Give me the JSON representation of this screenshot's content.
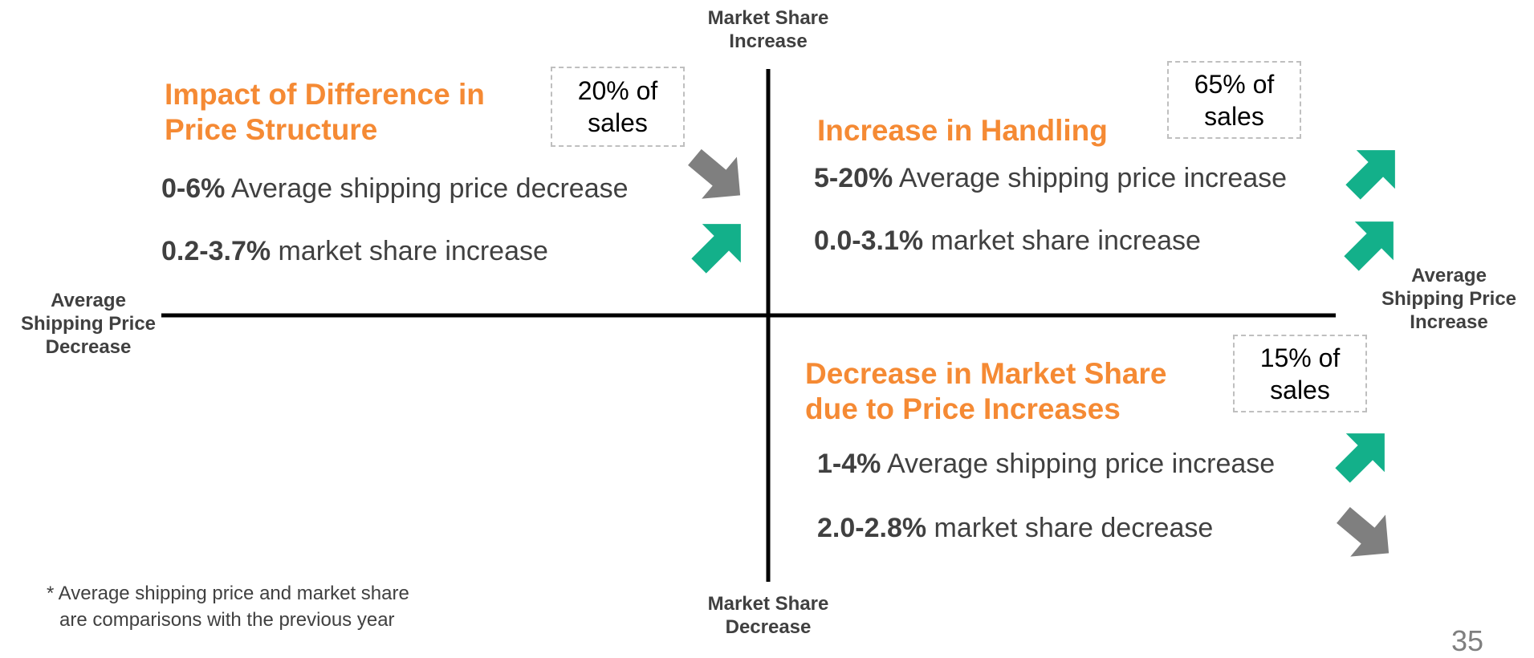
{
  "axes": {
    "top": [
      "Market Share",
      "Increase"
    ],
    "bottom": [
      "Market Share",
      "Decrease"
    ],
    "left": [
      "Average",
      "Shipping Price",
      "Decrease"
    ],
    "right": [
      "Average",
      "Shipping Price",
      "Increase"
    ]
  },
  "quadrants": [
    {
      "title": [
        "Impact of Difference in",
        "Price Structure"
      ],
      "share": [
        "20% of",
        "sales"
      ],
      "items": [
        {
          "figure": "0-6%",
          "text": "Average shipping price decrease"
        },
        {
          "figure": "0.2-3.7%",
          "text": "market share increase"
        }
      ]
    },
    {
      "title": [
        "Increase in Handling"
      ],
      "share": [
        "65% of",
        "sales"
      ],
      "items": [
        {
          "figure": "5-20%",
          "text": "Average shipping price increase"
        },
        {
          "figure": "0.0-3.1%",
          "text": "market share increase"
        }
      ]
    },
    {
      "title": [
        "Decrease in Market Share",
        "due to Price Increases"
      ],
      "share": [
        "15% of",
        "sales"
      ],
      "items": [
        {
          "figure": "1-4%",
          "text": "Average shipping price increase"
        },
        {
          "figure": "2.0-2.8%",
          "text": "market share decrease"
        }
      ]
    }
  ],
  "footnote": [
    "* Average shipping price and market share",
    "are comparisons with the previous year"
  ],
  "page_number": "35"
}
